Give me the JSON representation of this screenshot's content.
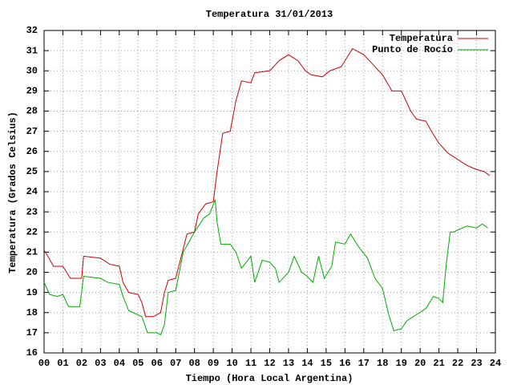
{
  "chart_data": {
    "type": "line",
    "title": "Temperatura 31/01/2013",
    "xlabel": "Tiempo (Hora Local Argentina)",
    "ylabel": "Temperatura (Grados Celsius)",
    "xlim": [
      0,
      24
    ],
    "ylim": [
      16,
      32
    ],
    "xticks": [
      {
        "value": 0,
        "label": "00"
      },
      {
        "value": 1,
        "label": "01"
      },
      {
        "value": 2,
        "label": "02"
      },
      {
        "value": 3,
        "label": "03"
      },
      {
        "value": 4,
        "label": "04"
      },
      {
        "value": 5,
        "label": "05"
      },
      {
        "value": 6,
        "label": "06"
      },
      {
        "value": 7,
        "label": "07"
      },
      {
        "value": 8,
        "label": "08"
      },
      {
        "value": 9,
        "label": "09"
      },
      10,
      11,
      12,
      13,
      14,
      15,
      16,
      17,
      18,
      19,
      20,
      21,
      22,
      23,
      24
    ],
    "yticks": [
      16,
      17,
      18,
      19,
      20,
      21,
      22,
      23,
      24,
      25,
      26,
      27,
      28,
      29,
      30,
      31,
      32
    ],
    "grid": true,
    "legend": "top-right",
    "series": [
      {
        "name": "Temperatura",
        "color": "#cc0000",
        "x": [
          0,
          0.2,
          0.5,
          1.0,
          1.4,
          2.0,
          2.1,
          3.0,
          3.5,
          4.0,
          4.2,
          4.5,
          5.0,
          5.2,
          5.4,
          5.8,
          6.0,
          6.2,
          6.4,
          6.6,
          7.0,
          7.3,
          7.6,
          8.0,
          8.2,
          8.6,
          9.0,
          9.2,
          9.5,
          9.9,
          10.2,
          10.5,
          11.0,
          11.2,
          12.0,
          12.5,
          13.0,
          13.5,
          13.9,
          14.2,
          14.8,
          15.2,
          15.8,
          16.4,
          17.0,
          17.5,
          18.0,
          18.5,
          19.0,
          19.5,
          19.8,
          20.3,
          20.6,
          21.0,
          21.5,
          22.0,
          22.5,
          23.0,
          23.4,
          23.7
        ],
        "values": [
          21.1,
          20.8,
          20.3,
          20.3,
          19.7,
          19.7,
          20.8,
          20.7,
          20.4,
          20.3,
          19.5,
          19.0,
          18.9,
          18.5,
          17.8,
          17.8,
          17.9,
          18.0,
          19.0,
          19.6,
          19.7,
          20.8,
          21.9,
          22.0,
          22.9,
          23.4,
          23.5,
          25.0,
          26.9,
          27.0,
          28.5,
          29.5,
          29.4,
          29.9,
          30.0,
          30.5,
          30.8,
          30.5,
          30.0,
          29.8,
          29.7,
          30.0,
          30.2,
          31.1,
          30.8,
          30.3,
          29.8,
          29.0,
          29.0,
          28.0,
          27.6,
          27.5,
          27.0,
          26.4,
          25.9,
          25.6,
          25.3,
          25.1,
          25.0,
          24.8
        ]
      },
      {
        "name": "Punto de Rocío",
        "color": "#00aa00",
        "x": [
          0,
          0.3,
          0.7,
          1.0,
          1.3,
          1.9,
          2.1,
          3.0,
          3.4,
          4.0,
          4.2,
          4.5,
          5.2,
          5.5,
          6.0,
          6.2,
          6.4,
          6.6,
          7.0,
          7.4,
          8.0,
          8.5,
          8.8,
          9.1,
          9.2,
          9.4,
          9.9,
          10.2,
          10.5,
          11.0,
          11.2,
          11.6,
          12.0,
          12.3,
          12.5,
          13.0,
          13.3,
          13.7,
          14.0,
          14.3,
          14.6,
          14.9,
          15.3,
          15.5,
          16.0,
          16.3,
          16.7,
          17.2,
          17.6,
          18.0,
          18.3,
          18.6,
          19.0,
          19.3,
          19.8,
          20.3,
          20.7,
          21.0,
          21.2,
          21.4,
          21.6,
          21.8,
          22.0,
          22.5,
          23.0,
          23.3,
          23.6
        ],
        "values": [
          19.5,
          18.9,
          18.8,
          18.9,
          18.3,
          18.3,
          19.8,
          19.7,
          19.5,
          19.4,
          18.8,
          18.1,
          17.8,
          17.0,
          17.0,
          16.9,
          17.4,
          19.0,
          19.1,
          21.0,
          22.0,
          22.7,
          22.9,
          23.6,
          22.5,
          21.4,
          21.4,
          21.0,
          20.2,
          20.8,
          19.5,
          20.6,
          20.5,
          20.2,
          19.5,
          20.0,
          20.8,
          20.0,
          19.8,
          19.5,
          20.8,
          19.7,
          20.3,
          21.5,
          21.4,
          21.9,
          21.3,
          20.7,
          19.7,
          19.2,
          18.0,
          17.1,
          17.2,
          17.6,
          17.9,
          18.2,
          18.8,
          18.7,
          18.5,
          20.5,
          22.0,
          22.0,
          22.1,
          22.3,
          22.2,
          22.4,
          22.2
        ]
      }
    ]
  }
}
